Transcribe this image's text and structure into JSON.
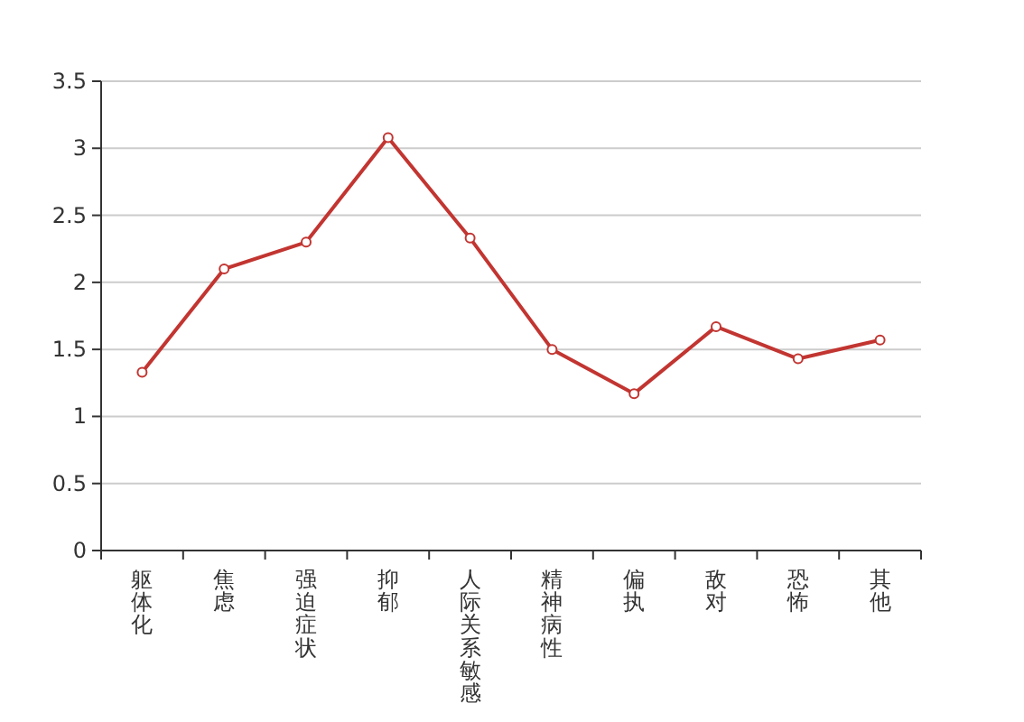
{
  "chart_data": {
    "type": "line",
    "categories": [
      "躯体化",
      "焦虑",
      "强迫症状",
      "抑郁",
      "人际关系敏感",
      "精神病性",
      "偏执",
      "敌对",
      "恐怖",
      "其他"
    ],
    "series": [
      {
        "color": "#c23531",
        "values": [
          1.33,
          2.1,
          2.3,
          3.08,
          2.33,
          1.5,
          1.17,
          1.67,
          1.43,
          1.57
        ]
      }
    ],
    "ylim": [
      0,
      3.5
    ],
    "yticks": [
      0,
      0.5,
      1,
      1.5,
      2,
      2.5,
      3,
      3.5
    ],
    "grid": "y",
    "marker": "circle",
    "line_style": "solid"
  }
}
